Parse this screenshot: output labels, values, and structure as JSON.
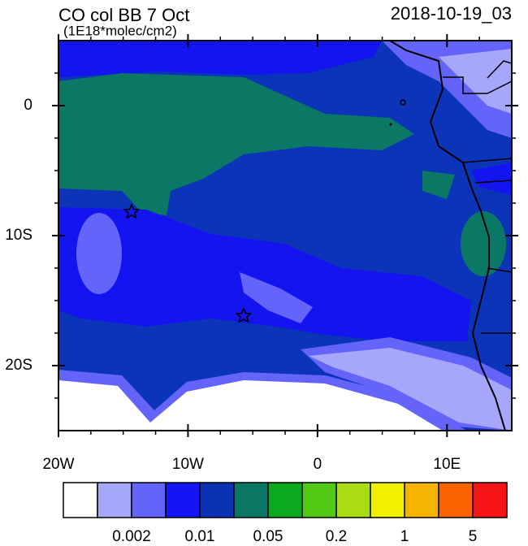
{
  "header": {
    "title": "CO col BB 7 Oct",
    "subtitle": "(1E18*molec/cm2)",
    "time": "2018-10-19_03"
  },
  "axes": {
    "xlim": [
      -20,
      15
    ],
    "ylim": [
      -25,
      5
    ],
    "xticks": [
      {
        "value": -20,
        "label": "20W"
      },
      {
        "value": -10,
        "label": "10W"
      },
      0,
      {
        "value": 10,
        "label": "10E"
      }
    ],
    "yticks": [
      0,
      {
        "value": -10,
        "label": "10S"
      },
      {
        "value": -20,
        "label": "20S"
      }
    ]
  },
  "colorbar": {
    "colors": [
      "#ffffff",
      "#a6a6fa",
      "#6464fa",
      "#1414f5",
      "#0a32b4",
      "#0a7864",
      "#0aaa1e",
      "#50c814",
      "#aadc14",
      "#f0f000",
      "#f5b400",
      "#fa6400",
      "#f51414"
    ],
    "labels": [
      "0.002",
      "0.01",
      "0.05",
      "0.2",
      "1",
      "5"
    ]
  }
}
